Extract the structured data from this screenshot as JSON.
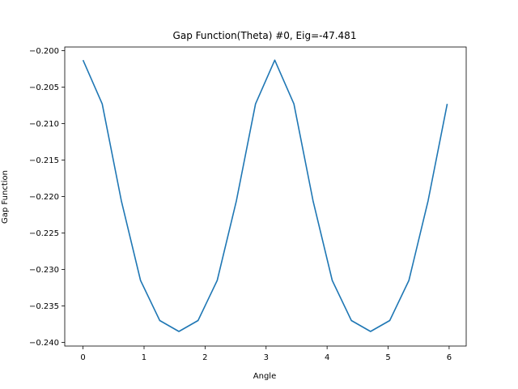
{
  "chart_data": {
    "type": "line",
    "title": "Gap Function(Theta) #0, Eig=-47.481",
    "xlabel": "Angle",
    "ylabel": "Gap Function",
    "xlim": [
      -0.3,
      6.28
    ],
    "ylim": [
      -0.2405,
      -0.1995
    ],
    "xticks": [
      0,
      1,
      2,
      3,
      4,
      5,
      6
    ],
    "xtick_labels": [
      "0",
      "1",
      "2",
      "3",
      "4",
      "5",
      "6"
    ],
    "yticks": [
      -0.24,
      -0.235,
      -0.23,
      -0.225,
      -0.22,
      -0.215,
      -0.21,
      -0.205,
      -0.2
    ],
    "ytick_labels": [
      "−0.240",
      "−0.235",
      "−0.230",
      "−0.225",
      "−0.220",
      "−0.215",
      "−0.210",
      "−0.205",
      "−0.200"
    ],
    "grid": false,
    "series": [
      {
        "color": "#1f77b4",
        "x": [
          0.0,
          0.314,
          0.628,
          0.942,
          1.257,
          1.571,
          1.885,
          2.199,
          2.513,
          2.827,
          3.142,
          3.456,
          3.77,
          4.084,
          4.398,
          4.712,
          5.027,
          5.341,
          5.655,
          5.969
        ],
        "y": [
          -0.2013,
          -0.2073,
          -0.2206,
          -0.2315,
          -0.237,
          -0.2385,
          -0.237,
          -0.2315,
          -0.2206,
          -0.2073,
          -0.2013,
          -0.2073,
          -0.2206,
          -0.2315,
          -0.237,
          -0.2385,
          -0.237,
          -0.2315,
          -0.2206,
          -0.2073
        ]
      }
    ]
  }
}
